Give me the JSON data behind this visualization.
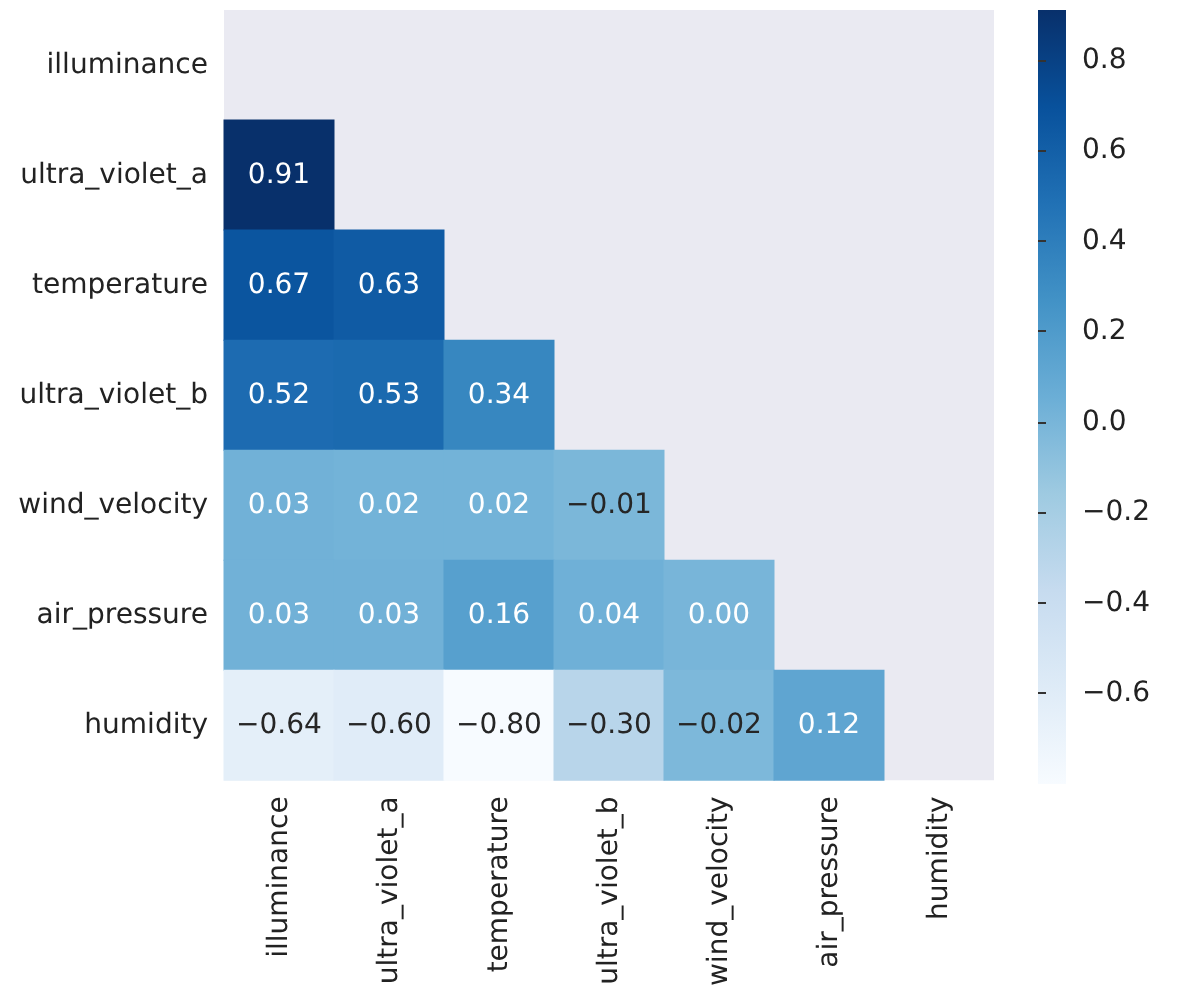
{
  "chart_data": {
    "type": "heatmap",
    "categories": [
      "illuminance",
      "ultra_violet_a",
      "temperature",
      "ultra_violet_b",
      "wind_velocity",
      "air_pressure",
      "humidity"
    ],
    "y_categories": [
      "illuminance",
      "ultra_violet_a",
      "temperature",
      "ultra_violet_b",
      "wind_velocity",
      "air_pressure",
      "humidity"
    ],
    "cells": [
      [
        null,
        null,
        null,
        null,
        null,
        null,
        null
      ],
      [
        0.91,
        null,
        null,
        null,
        null,
        null,
        null
      ],
      [
        0.67,
        0.63,
        null,
        null,
        null,
        null,
        null
      ],
      [
        0.52,
        0.53,
        0.34,
        null,
        null,
        null,
        null
      ],
      [
        0.03,
        0.02,
        0.02,
        -0.01,
        null,
        null,
        null
      ],
      [
        0.03,
        0.03,
        0.16,
        0.04,
        0.0,
        null,
        null
      ],
      [
        -0.64,
        -0.6,
        -0.8,
        -0.3,
        -0.02,
        0.12,
        null
      ]
    ],
    "cell_labels": [
      [
        null,
        null,
        null,
        null,
        null,
        null,
        null
      ],
      [
        "0.91",
        null,
        null,
        null,
        null,
        null,
        null
      ],
      [
        "0.67",
        "0.63",
        null,
        null,
        null,
        null,
        null
      ],
      [
        "0.52",
        "0.53",
        "0.34",
        null,
        null,
        null,
        null
      ],
      [
        "0.03",
        "0.02",
        "0.02",
        "−0.01",
        null,
        null,
        null
      ],
      [
        "0.03",
        "0.03",
        "0.16",
        "0.04",
        "0.00",
        null,
        null
      ],
      [
        "−0.64",
        "−0.60",
        "−0.80",
        "−0.30",
        "−0.02",
        "0.12",
        null
      ]
    ],
    "clim": [
      -0.8,
      0.91
    ],
    "cticks": [
      {
        "value": -0.6,
        "label": "−0.6"
      },
      {
        "value": -0.4,
        "label": "−0.4"
      },
      {
        "value": -0.2,
        "label": "−0.2"
      },
      {
        "value": 0,
        "label": "0.0"
      },
      0.2,
      0.4,
      0.6,
      0.8
    ]
  }
}
